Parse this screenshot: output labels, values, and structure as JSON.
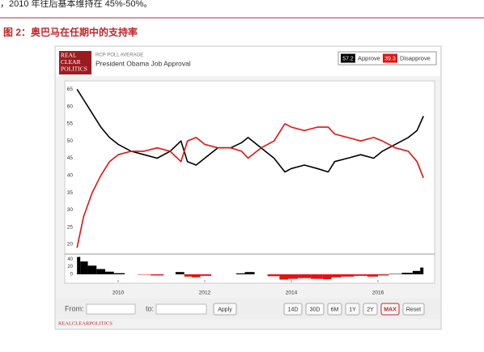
{
  "page": {
    "top_text": "，2010 年往后基本维持在 45%-50%。",
    "figure_title": "图 2：奥巴马在任期中的支持率",
    "logo": [
      "REAL",
      "CLEAR",
      "POLITICS"
    ],
    "footer": "REALCLEARPOLITICS"
  },
  "controls": {
    "from": "From:",
    "to": "to:",
    "apply": "Apply",
    "ranges": [
      "14D",
      "30D",
      "6M",
      "1Y",
      "2Y",
      "MAX"
    ],
    "active": "MAX",
    "reset": "Reset"
  },
  "chart_data": {
    "type": "line",
    "subtitle": "RCP POLL AVERAGE",
    "title": "President Obama Job Approval",
    "x": [
      2009.05,
      2009.2,
      2009.4,
      2009.6,
      2009.8,
      2010.0,
      2010.3,
      2010.6,
      2010.9,
      2011.2,
      2011.45,
      2011.6,
      2011.8,
      2012.0,
      2012.3,
      2012.6,
      2012.85,
      2013.0,
      2013.3,
      2013.6,
      2013.85,
      2014.0,
      2014.3,
      2014.6,
      2014.85,
      2015.0,
      2015.3,
      2015.6,
      2015.9,
      2016.1,
      2016.4,
      2016.7,
      2016.9,
      2017.05
    ],
    "series": [
      {
        "name": "Approve",
        "color": "#000000",
        "latest": 57.2,
        "values": [
          65,
          62,
          58,
          54,
          51,
          49,
          47,
          46,
          45,
          47,
          50,
          44,
          43,
          45,
          48,
          48,
          49.5,
          51,
          48,
          45,
          41,
          42,
          43,
          42,
          41,
          44,
          45,
          46,
          45,
          47,
          49,
          51,
          53,
          57.2
        ]
      },
      {
        "name": "Disapprove",
        "color": "#e8100f",
        "latest": 39.3,
        "values": [
          19,
          28,
          35,
          40,
          44,
          46,
          47,
          47,
          48,
          47,
          44,
          50,
          51,
          49,
          48,
          48,
          47,
          45,
          48,
          50,
          55,
          54,
          53,
          54,
          54,
          52,
          51,
          50,
          51,
          50,
          48,
          47,
          44,
          39.3
        ]
      }
    ],
    "xlim": [
      2009.0,
      2017.14
    ],
    "xticks": [
      2010,
      2012,
      2014,
      2016
    ],
    "ylim": [
      18,
      66
    ],
    "yticks": [
      20,
      25,
      30,
      35,
      40,
      45,
      50,
      55,
      60,
      65
    ],
    "grid": false,
    "spread": {
      "values": [
        46,
        34,
        23,
        14,
        7,
        3,
        0,
        -1,
        -3,
        0,
        6,
        -6,
        -8,
        -4,
        0,
        0,
        2.5,
        6,
        0,
        -5,
        -14,
        -12,
        -10,
        -12,
        -13,
        -8,
        -6,
        -4,
        -6,
        -3,
        1,
        4,
        9,
        17.9
      ],
      "ylim": [
        -15,
        45
      ],
      "yticks": [
        0,
        20,
        40
      ]
    }
  }
}
